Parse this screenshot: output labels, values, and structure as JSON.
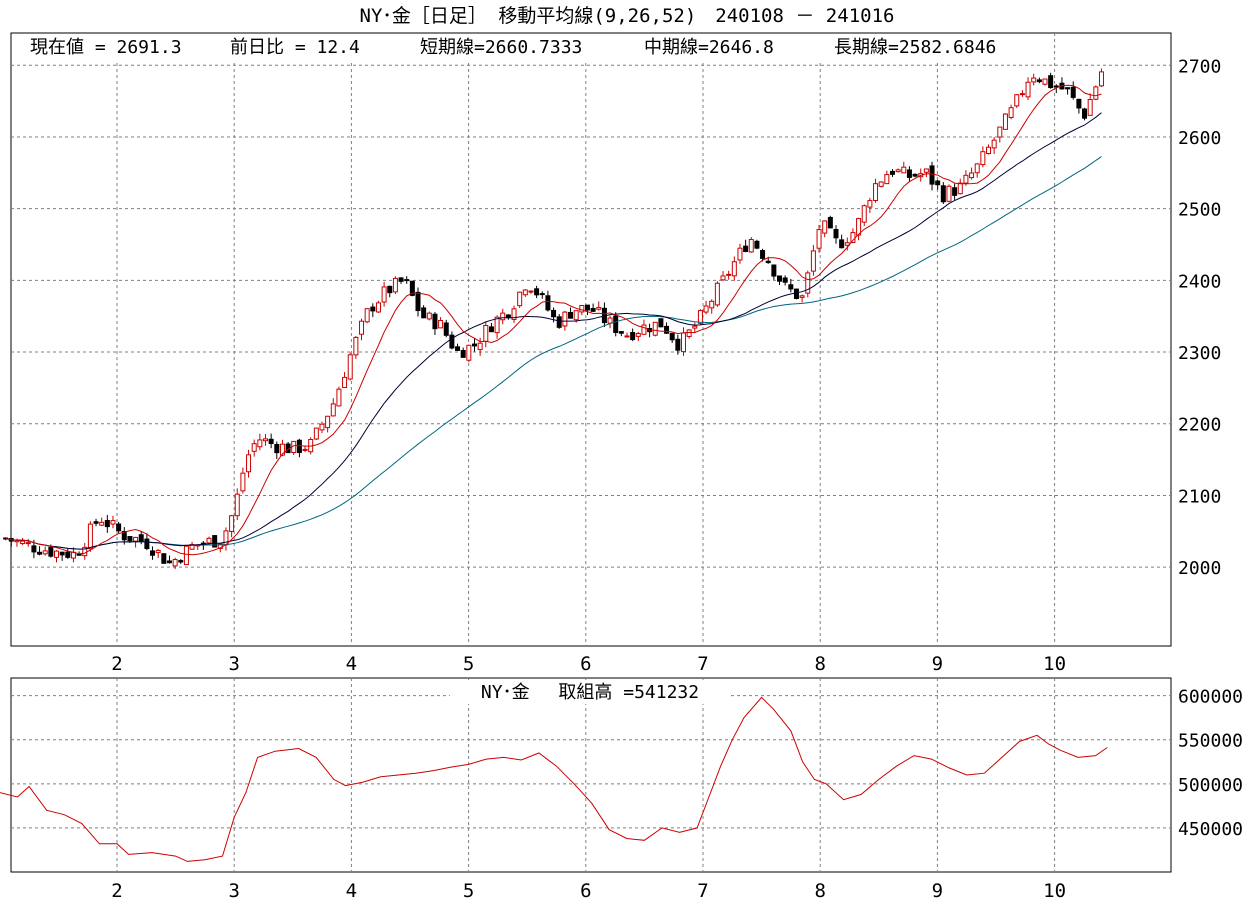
{
  "title": "NY･金［日足］ 移動平均線(9,26,52)　240108 － 241016",
  "info": {
    "current_label": "現在値 = 2691.3",
    "change_label": "前日比 = 12.4",
    "short_label": "短期線=2660.7333",
    "mid_label": "中期線=2646.8",
    "long_label": "長期線=2582.6846"
  },
  "sub_title": "NY･金　 取組高 =541232",
  "colors": {
    "up_candle": "#cc0000",
    "down_candle": "#000000",
    "ma_short": "#cc0000",
    "ma_mid": "#000033",
    "ma_long": "#006680",
    "volume": "#cc0000",
    "grid": "#7f7f7f"
  },
  "chart_data": [
    {
      "type": "candlestick",
      "title": "NY･金［日足］ 移動平均線(9,26,52)",
      "x_ticks": [
        "2",
        "3",
        "4",
        "5",
        "6",
        "7",
        "8",
        "9",
        "10"
      ],
      "y_ticks": [
        "2700",
        "2600",
        "2500",
        "2400",
        "2300",
        "2200",
        "2100",
        "2000"
      ],
      "ylim": [
        1890,
        2745
      ],
      "grid": true,
      "series": [
        {
          "name": "ローソク足",
          "close_anchors": [
            [
              1.05,
              2040
            ],
            [
              1.25,
              2030
            ],
            [
              1.45,
              2022
            ],
            [
              1.65,
              2018
            ],
            [
              1.85,
              2070
            ],
            [
              2.05,
              2045
            ],
            [
              2.25,
              2035
            ],
            [
              2.45,
              2005
            ],
            [
              2.65,
              2030
            ],
            [
              2.9,
              2040
            ],
            [
              3.0,
              2080
            ],
            [
              3.1,
              2150
            ],
            [
              3.2,
              2180
            ],
            [
              3.35,
              2170
            ],
            [
              3.5,
              2165
            ],
            [
              3.65,
              2170
            ],
            [
              3.85,
              2230
            ],
            [
              4.0,
              2300
            ],
            [
              4.15,
              2360
            ],
            [
              4.3,
              2385
            ],
            [
              4.45,
              2400
            ],
            [
              4.6,
              2350
            ],
            [
              4.75,
              2340
            ],
            [
              4.9,
              2300
            ],
            [
              5.05,
              2310
            ],
            [
              5.2,
              2340
            ],
            [
              5.35,
              2360
            ],
            [
              5.5,
              2400
            ],
            [
              5.6,
              2380
            ],
            [
              5.75,
              2340
            ],
            [
              5.9,
              2360
            ],
            [
              6.05,
              2360
            ],
            [
              6.2,
              2340
            ],
            [
              6.35,
              2325
            ],
            [
              6.5,
              2335
            ],
            [
              6.65,
              2340
            ],
            [
              6.8,
              2310
            ],
            [
              6.95,
              2340
            ],
            [
              7.1,
              2380
            ],
            [
              7.25,
              2420
            ],
            [
              7.4,
              2460
            ],
            [
              7.55,
              2430
            ],
            [
              7.7,
              2390
            ],
            [
              7.85,
              2375
            ],
            [
              8.0,
              2480
            ],
            [
              8.15,
              2450
            ],
            [
              8.3,
              2470
            ],
            [
              8.45,
              2530
            ],
            [
              8.6,
              2555
            ],
            [
              8.75,
              2545
            ],
            [
              8.9,
              2550
            ],
            [
              9.05,
              2520
            ],
            [
              9.2,
              2530
            ],
            [
              9.35,
              2560
            ],
            [
              9.5,
              2600
            ],
            [
              9.65,
              2640
            ],
            [
              9.8,
              2690
            ],
            [
              9.95,
              2675
            ],
            [
              10.1,
              2665
            ],
            [
              10.25,
              2630
            ],
            [
              10.4,
              2691.3
            ]
          ]
        },
        {
          "name": "短期線 (9)"
        },
        {
          "name": "中期線 (26)"
        },
        {
          "name": "長期線 (52)"
        }
      ]
    },
    {
      "type": "line",
      "title": "NY･金 取組高",
      "x_ticks": [
        "2",
        "3",
        "4",
        "5",
        "6",
        "7",
        "8",
        "9",
        "10"
      ],
      "y_ticks": [
        "600000",
        "550000",
        "500000",
        "450000"
      ],
      "ylim": [
        400000,
        620000
      ],
      "grid": true,
      "series": [
        {
          "name": "取組高",
          "points": [
            [
              1.0,
              490000
            ],
            [
              1.15,
              485000
            ],
            [
              1.25,
              497000
            ],
            [
              1.4,
              470000
            ],
            [
              1.55,
              465000
            ],
            [
              1.7,
              455000
            ],
            [
              1.85,
              432000
            ],
            [
              2.0,
              432000
            ],
            [
              2.1,
              420000
            ],
            [
              2.3,
              422000
            ],
            [
              2.5,
              418000
            ],
            [
              2.6,
              412000
            ],
            [
              2.75,
              414000
            ],
            [
              2.9,
              418000
            ],
            [
              3.0,
              462000
            ],
            [
              3.1,
              490000
            ],
            [
              3.2,
              530000
            ],
            [
              3.35,
              537000
            ],
            [
              3.55,
              540000
            ],
            [
              3.7,
              530000
            ],
            [
              3.85,
              505000
            ],
            [
              3.95,
              498000
            ],
            [
              4.1,
              502000
            ],
            [
              4.25,
              508000
            ],
            [
              4.4,
              510000
            ],
            [
              4.55,
              512000
            ],
            [
              4.7,
              515000
            ],
            [
              4.85,
              519000
            ],
            [
              5.0,
              522000
            ],
            [
              5.15,
              528000
            ],
            [
              5.3,
              530000
            ],
            [
              5.45,
              527000
            ],
            [
              5.6,
              535000
            ],
            [
              5.75,
              520000
            ],
            [
              5.9,
              500000
            ],
            [
              6.05,
              478000
            ],
            [
              6.2,
              448000
            ],
            [
              6.35,
              438000
            ],
            [
              6.5,
              436000
            ],
            [
              6.65,
              450000
            ],
            [
              6.8,
              445000
            ],
            [
              6.95,
              450000
            ],
            [
              7.05,
              485000
            ],
            [
              7.15,
              520000
            ],
            [
              7.25,
              550000
            ],
            [
              7.35,
              575000
            ],
            [
              7.5,
              598000
            ],
            [
              7.6,
              585000
            ],
            [
              7.75,
              560000
            ],
            [
              7.85,
              525000
            ],
            [
              7.95,
              505000
            ],
            [
              8.05,
              500000
            ],
            [
              8.2,
              482000
            ],
            [
              8.35,
              488000
            ],
            [
              8.5,
              505000
            ],
            [
              8.65,
              520000
            ],
            [
              8.8,
              532000
            ],
            [
              8.95,
              528000
            ],
            [
              9.1,
              518000
            ],
            [
              9.25,
              510000
            ],
            [
              9.4,
              512000
            ],
            [
              9.55,
              530000
            ],
            [
              9.7,
              548000
            ],
            [
              9.85,
              555000
            ],
            [
              9.95,
              545000
            ],
            [
              10.05,
              538000
            ],
            [
              10.2,
              530000
            ],
            [
              10.35,
              532000
            ],
            [
              10.45,
              541232
            ]
          ]
        }
      ]
    }
  ]
}
